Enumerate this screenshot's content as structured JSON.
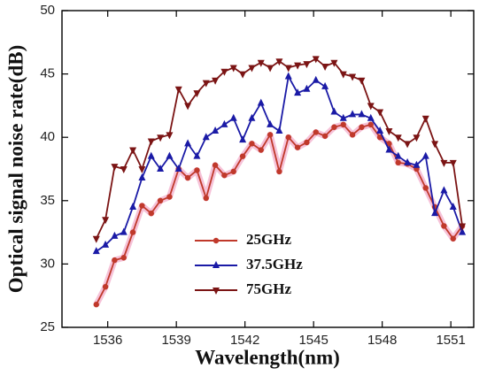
{
  "chart_data": {
    "type": "line",
    "x_label": "Wavelength(nm)",
    "y_label": "Optical signal noise rate(dB)",
    "x": [
      1535.5,
      1535.9,
      1536.3,
      1536.7,
      1537.1,
      1537.5,
      1537.9,
      1538.3,
      1538.7,
      1539.1,
      1539.5,
      1539.9,
      1540.3,
      1540.7,
      1541.1,
      1541.5,
      1541.9,
      1542.3,
      1542.7,
      1543.1,
      1543.5,
      1543.9,
      1544.3,
      1544.7,
      1545.1,
      1545.5,
      1545.9,
      1546.3,
      1546.7,
      1547.1,
      1547.5,
      1547.9,
      1548.3,
      1548.7,
      1549.1,
      1549.5,
      1549.9,
      1550.3,
      1550.7,
      1551.1,
      1551.5
    ],
    "series": [
      {
        "name": "25GHz",
        "color": "#c0392b",
        "marker": "circle",
        "values": [
          26.8,
          28.2,
          30.3,
          30.5,
          32.5,
          34.6,
          34.0,
          35.0,
          35.3,
          37.5,
          36.8,
          37.4,
          35.2,
          37.8,
          37.0,
          37.3,
          38.5,
          39.5,
          39.0,
          40.2,
          37.3,
          40.0,
          39.2,
          39.6,
          40.4,
          40.1,
          40.8,
          41.0,
          40.2,
          40.8,
          41.0,
          40.0,
          39.5,
          38.0,
          37.9,
          37.5,
          36.0,
          34.5,
          33.0,
          32.0,
          33.0
        ]
      },
      {
        "name": "37.5GHz",
        "color": "#1a1aa6",
        "marker": "triangle-up",
        "values": [
          31.0,
          31.5,
          32.2,
          32.5,
          34.5,
          36.8,
          38.5,
          37.5,
          38.5,
          37.5,
          39.5,
          38.5,
          40.0,
          40.5,
          41.0,
          41.5,
          39.8,
          41.5,
          42.7,
          41.0,
          40.5,
          44.8,
          43.5,
          43.8,
          44.5,
          44.0,
          42.0,
          41.5,
          41.8,
          41.8,
          41.5,
          40.5,
          39.0,
          38.5,
          38.0,
          37.8,
          38.5,
          34.0,
          35.8,
          34.5,
          32.5
        ]
      },
      {
        "name": "75GHz",
        "color": "#7b1414",
        "marker": "triangle-down",
        "values": [
          32.0,
          33.5,
          37.7,
          37.5,
          39.0,
          37.5,
          39.7,
          40.0,
          40.2,
          43.8,
          42.5,
          43.5,
          44.3,
          44.5,
          45.2,
          45.5,
          45.0,
          45.5,
          45.9,
          45.5,
          46.0,
          45.5,
          45.7,
          45.8,
          46.2,
          45.6,
          45.9,
          45.0,
          44.8,
          44.5,
          42.5,
          42.0,
          40.5,
          40.0,
          39.5,
          40.0,
          41.5,
          39.5,
          38.0,
          38.0,
          33.0
        ]
      }
    ],
    "xlim": [
      1534,
      1552
    ],
    "xticks": [
      1536,
      1539,
      1542,
      1545,
      1548,
      1551
    ],
    "ylim": [
      25,
      50
    ],
    "yticks": [
      25,
      30,
      35,
      40,
      45,
      50
    ],
    "legend": "lower center",
    "grid": false
  }
}
